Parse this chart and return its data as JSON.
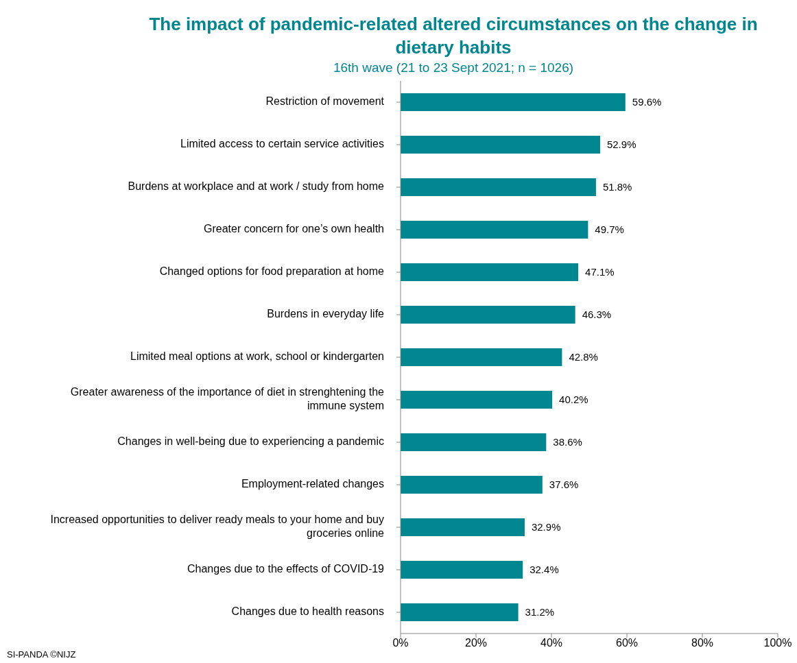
{
  "chart_data": {
    "type": "bar",
    "orientation": "horizontal",
    "title": "The impact of pandemic-related altered circumstances on the change in dietary habits",
    "subtitle": "16th wave (21 to 23 Sept 2021; n = 1026)",
    "categories": [
      "Restriction of movement",
      "Limited access to certain service activities",
      "Burdens at workplace and at work / study from home",
      "Greater concern for one’s own health",
      "Changed options for food preparation at home",
      "Burdens in everyday life",
      "Limited meal options at work, school or kindergarten",
      "Greater awareness of the importance of diet in strenghtening the immune system",
      "Changes in well-being due to experiencing a pandemic",
      "Employment-related changes",
      "Increased opportunities to deliver ready meals to your home and buy groceries online",
      "Changes due to the effects of COVID-19",
      "Changes due to health reasons"
    ],
    "values": [
      59.6,
      52.9,
      51.8,
      49.7,
      47.1,
      46.3,
      42.8,
      40.2,
      38.6,
      37.6,
      32.9,
      32.4,
      31.2
    ],
    "value_labels": [
      "59.6%",
      "52.9%",
      "51.8%",
      "49.7%",
      "47.1%",
      "46.3%",
      "42.8%",
      "40.2%",
      "38.6%",
      "37.6%",
      "32.9%",
      "32.4%",
      "31.2%"
    ],
    "color": "#00868f",
    "xlim": [
      0,
      100
    ],
    "xticks": [
      {
        "value": 0,
        "label": "0%"
      },
      {
        "value": 20,
        "label": "20%"
      },
      {
        "value": 40,
        "label": "40%"
      },
      {
        "value": 60,
        "label": "60%"
      },
      {
        "value": 80,
        "label": "80%"
      },
      {
        "value": 100,
        "label": "100%"
      }
    ],
    "grid": false,
    "legend": false,
    "annotations": [
      "SI-PANDA ©NIJZ"
    ]
  }
}
